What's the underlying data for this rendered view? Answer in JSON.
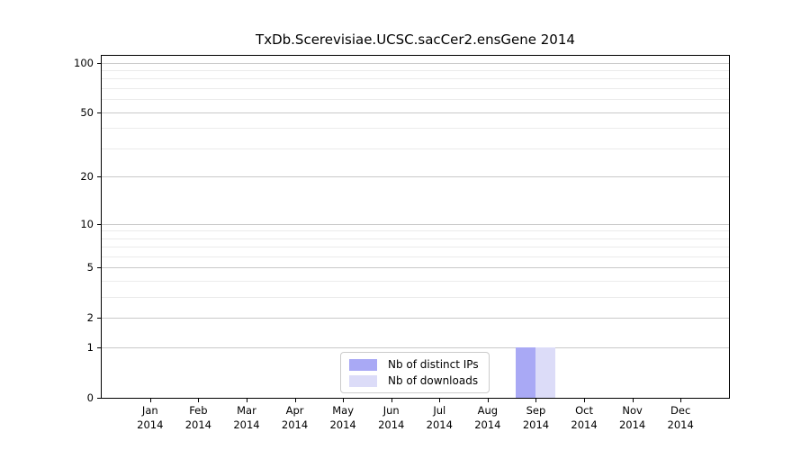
{
  "chart_data": {
    "type": "bar",
    "title": "TxDb.Scerevisiae.UCSC.sacCer2.ensGene 2014",
    "categories": [
      "Jan 2014",
      "Feb 2014",
      "Mar 2014",
      "Apr 2014",
      "May 2014",
      "Jun 2014",
      "Jul 2014",
      "Aug 2014",
      "Sep 2014",
      "Oct 2014",
      "Nov 2014",
      "Dec 2014"
    ],
    "series": [
      {
        "name": "Nb of distinct IPs",
        "color": "#a9a9f5",
        "values": [
          0,
          0,
          0,
          0,
          0,
          0,
          0,
          0,
          1,
          0,
          0,
          0
        ]
      },
      {
        "name": "Nb of downloads",
        "color": "#dcdcf8",
        "values": [
          0,
          0,
          0,
          0,
          0,
          0,
          0,
          0,
          1,
          0,
          0,
          0
        ]
      }
    ],
    "y_axis": {
      "scale": "log10(value+1)",
      "tick_values": [
        0,
        1,
        2,
        5,
        10,
        20,
        50,
        100
      ],
      "minor_tick_values": [
        3,
        4,
        6,
        7,
        8,
        9,
        30,
        40,
        60,
        70,
        80,
        90
      ],
      "ylim": [
        0,
        110
      ],
      "label": ""
    },
    "x_axis": {
      "label": ""
    },
    "grid": "horizontal",
    "legend_position": "lower center",
    "colors": {
      "grid_major": "#c9c9c9",
      "grid_minor": "#ebebeb",
      "spine": "#000000",
      "text": "#000000",
      "background": "#ffffff"
    }
  }
}
